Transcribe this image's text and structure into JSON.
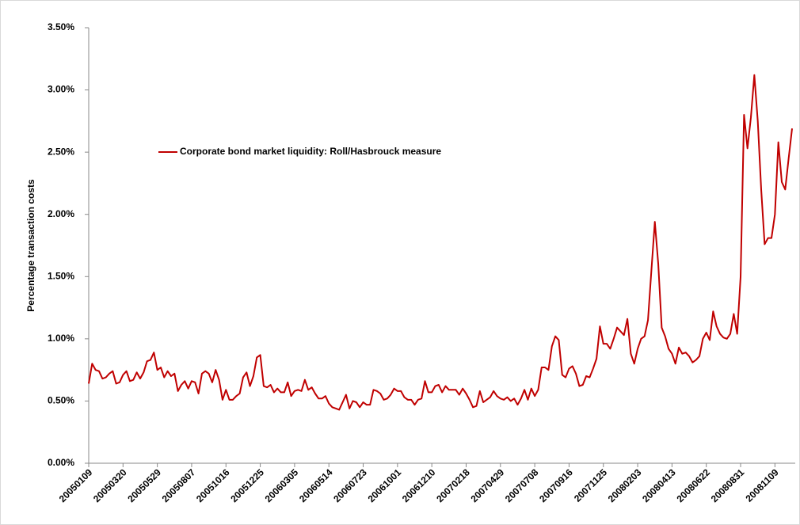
{
  "chart_data": {
    "type": "line",
    "y_label": "Percentage transaction costs",
    "categories": [
      "20050109",
      null,
      null,
      null,
      null,
      null,
      null,
      null,
      null,
      null,
      "20050320",
      null,
      null,
      null,
      null,
      null,
      null,
      null,
      null,
      null,
      "20050529",
      null,
      null,
      null,
      null,
      null,
      null,
      null,
      null,
      null,
      "20050807",
      null,
      null,
      null,
      null,
      null,
      null,
      null,
      null,
      null,
      "20051016",
      null,
      null,
      null,
      null,
      null,
      null,
      null,
      null,
      null,
      "20051225",
      null,
      null,
      null,
      null,
      null,
      null,
      null,
      null,
      null,
      "20060305",
      null,
      null,
      null,
      null,
      null,
      null,
      null,
      null,
      null,
      "20060514",
      null,
      null,
      null,
      null,
      null,
      null,
      null,
      null,
      null,
      "20060723",
      null,
      null,
      null,
      null,
      null,
      null,
      null,
      null,
      null,
      "20061001",
      null,
      null,
      null,
      null,
      null,
      null,
      null,
      null,
      null,
      "20061210",
      null,
      null,
      null,
      null,
      null,
      null,
      null,
      null,
      null,
      "20070218",
      null,
      null,
      null,
      null,
      null,
      null,
      null,
      null,
      null,
      "20070429",
      null,
      null,
      null,
      null,
      null,
      null,
      null,
      null,
      null,
      "20070708",
      null,
      null,
      null,
      null,
      null,
      null,
      null,
      null,
      null,
      "20070916",
      null,
      null,
      null,
      null,
      null,
      null,
      null,
      null,
      null,
      "20071125",
      null,
      null,
      null,
      null,
      null,
      null,
      null,
      null,
      null,
      "20080203",
      null,
      null,
      null,
      null,
      null,
      null,
      null,
      null,
      null,
      "20080413",
      null,
      null,
      null,
      null,
      null,
      null,
      null,
      null,
      null,
      "20080622",
      null,
      null,
      null,
      null,
      null,
      null,
      null,
      null,
      null,
      "20080831",
      null,
      null,
      null,
      null,
      null,
      null,
      null,
      null,
      null,
      "20081109",
      null,
      null,
      null,
      null,
      null
    ],
    "series": [
      {
        "name": "Corporate bond market liquidity: Roll/Hasbrouck measure",
        "color": "#c00000",
        "values": [
          0.64,
          0.8,
          0.75,
          0.74,
          0.68,
          0.69,
          0.72,
          0.74,
          0.64,
          0.65,
          0.71,
          0.74,
          0.66,
          0.67,
          0.73,
          0.68,
          0.73,
          0.82,
          0.83,
          0.89,
          0.75,
          0.77,
          0.69,
          0.74,
          0.7,
          0.72,
          0.58,
          0.63,
          0.66,
          0.6,
          0.66,
          0.65,
          0.56,
          0.72,
          0.74,
          0.72,
          0.65,
          0.75,
          0.67,
          0.51,
          0.59,
          0.51,
          0.51,
          0.54,
          0.56,
          0.69,
          0.73,
          0.62,
          0.7,
          0.85,
          0.87,
          0.62,
          0.61,
          0.63,
          0.57,
          0.6,
          0.57,
          0.57,
          0.65,
          0.54,
          0.58,
          0.59,
          0.58,
          0.67,
          0.59,
          0.61,
          0.56,
          0.52,
          0.52,
          0.54,
          0.48,
          0.45,
          0.44,
          0.43,
          0.49,
          0.55,
          0.44,
          0.5,
          0.49,
          0.45,
          0.49,
          0.47,
          0.47,
          0.59,
          0.58,
          0.56,
          0.51,
          0.52,
          0.55,
          0.6,
          0.58,
          0.58,
          0.53,
          0.51,
          0.51,
          0.47,
          0.51,
          0.52,
          0.66,
          0.57,
          0.57,
          0.62,
          0.63,
          0.57,
          0.62,
          0.59,
          0.59,
          0.59,
          0.55,
          0.6,
          0.56,
          0.51,
          0.45,
          0.46,
          0.58,
          0.49,
          0.51,
          0.53,
          0.58,
          0.54,
          0.52,
          0.51,
          0.53,
          0.5,
          0.52,
          0.47,
          0.52,
          0.59,
          0.51,
          0.6,
          0.54,
          0.59,
          0.77,
          0.77,
          0.75,
          0.94,
          1.02,
          0.99,
          0.71,
          0.69,
          0.76,
          0.78,
          0.72,
          0.62,
          0.63,
          0.7,
          0.69,
          0.76,
          0.84,
          1.1,
          0.96,
          0.96,
          0.92,
          1.0,
          1.09,
          1.06,
          1.03,
          1.16,
          0.88,
          0.8,
          0.92,
          1.0,
          1.02,
          1.15,
          1.55,
          1.94,
          1.6,
          1.09,
          1.02,
          0.92,
          0.88,
          0.8,
          0.93,
          0.88,
          0.89,
          0.86,
          0.81,
          0.83,
          0.86,
          1.0,
          1.05,
          0.99,
          1.22,
          1.1,
          1.04,
          1.01,
          1.0,
          1.04,
          1.2,
          1.04,
          1.5,
          2.8,
          2.53,
          2.78,
          3.12,
          2.75,
          2.2,
          1.76,
          1.81,
          1.81,
          2.0,
          2.58,
          2.26,
          2.2,
          2.45,
          2.69
        ]
      }
    ],
    "ylim": [
      0,
      3.5
    ],
    "yticks": [
      {
        "value": 0,
        "label": "0.00%"
      },
      {
        "value": 0.5,
        "label": "0.50%"
      },
      {
        "value": 1,
        "label": "1.00%"
      },
      {
        "value": 1.5,
        "label": "1.50%"
      },
      {
        "value": 2,
        "label": "2.00%"
      },
      {
        "value": 2.5,
        "label": "2.50%"
      },
      {
        "value": 3,
        "label": "3.00%"
      },
      {
        "value": 3.5,
        "label": "3.50%"
      }
    ],
    "grid": false,
    "legend": "upper-left"
  }
}
